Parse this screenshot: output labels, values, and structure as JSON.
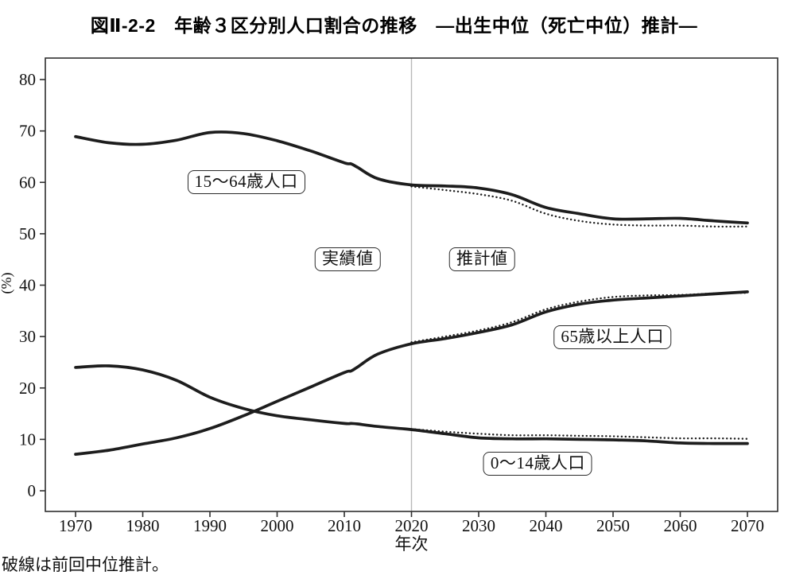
{
  "title": "図Ⅱ-2-2　年齢３区分別人口割合の推移　―出生中位（死亡中位）推計―",
  "footnote": "破線は前回中位推計。",
  "colors": {
    "line": "#1d1d1d",
    "divider": "#b9b9b9",
    "axis": "#2f2f2f",
    "text": "#111111",
    "background": "#ffffff"
  },
  "chart_data": {
    "type": "line",
    "title": "図Ⅱ-2-2　年齢３区分別人口割合の推移　―出生中位（死亡中位）推計―",
    "xlabel": "年次",
    "ylabel": "(%)",
    "xlim": [
      1965.5,
      2074.5
    ],
    "ylim": [
      -4.02,
      84.18
    ],
    "x_ticks": [
      1970,
      1980,
      1990,
      2000,
      2010,
      2020,
      2030,
      2040,
      2050,
      2060,
      2070
    ],
    "y_ticks": [
      0,
      10,
      20,
      30,
      40,
      50,
      60,
      70,
      80
    ],
    "grid": false,
    "legend": "none",
    "divider_x": 2020,
    "series": [
      {
        "id": "working",
        "name": "15〜64歳人口",
        "style": "solid",
        "x": [
          1970,
          1975,
          1980,
          1985,
          1990,
          1995,
          2000,
          2005,
          2010,
          2011,
          2012,
          2015,
          2020,
          2025,
          2030,
          2035,
          2040,
          2045,
          2050,
          2055,
          2060,
          2065,
          2070
        ],
        "values": [
          68.9,
          67.7,
          67.4,
          68.2,
          69.7,
          69.5,
          68.1,
          66.1,
          63.8,
          63.6,
          62.9,
          60.7,
          59.5,
          59.3,
          58.9,
          57.6,
          55.1,
          53.9,
          52.9,
          52.9,
          53.0,
          52.5,
          52.1
        ]
      },
      {
        "id": "elderly",
        "name": "65歳以上人口",
        "style": "solid",
        "x": [
          1970,
          1975,
          1980,
          1985,
          1990,
          1995,
          2000,
          2005,
          2010,
          2011,
          2012,
          2015,
          2020,
          2025,
          2030,
          2035,
          2040,
          2045,
          2050,
          2055,
          2060,
          2065,
          2070
        ],
        "values": [
          7.1,
          7.9,
          9.1,
          10.3,
          12.1,
          14.6,
          17.4,
          20.2,
          23.0,
          23.3,
          24.1,
          26.6,
          28.6,
          29.6,
          30.8,
          32.3,
          34.8,
          36.3,
          37.1,
          37.5,
          37.9,
          38.3,
          38.7
        ]
      },
      {
        "id": "children",
        "name": "0〜14歳人口",
        "style": "solid",
        "x": [
          1970,
          1975,
          1980,
          1985,
          1990,
          1995,
          2000,
          2005,
          2010,
          2011,
          2012,
          2015,
          2020,
          2025,
          2030,
          2035,
          2040,
          2045,
          2050,
          2055,
          2060,
          2065,
          2070
        ],
        "values": [
          24.0,
          24.3,
          23.5,
          21.5,
          18.2,
          16.0,
          14.6,
          13.8,
          13.1,
          13.1,
          13.0,
          12.5,
          11.9,
          11.1,
          10.3,
          10.1,
          10.1,
          10.0,
          9.9,
          9.7,
          9.3,
          9.2,
          9.2
        ]
      },
      {
        "id": "working-prev",
        "name": "15〜64歳人口（前回中位推計）",
        "style": "dotted",
        "x": [
          2020,
          2025,
          2030,
          2035,
          2040,
          2045,
          2050,
          2055,
          2060,
          2065,
          2070
        ],
        "values": [
          59.2,
          58.5,
          57.7,
          56.4,
          53.9,
          52.5,
          51.8,
          51.6,
          51.6,
          51.4,
          51.4
        ]
      },
      {
        "id": "elderly-prev",
        "name": "65歳以上人口（前回中位推計）",
        "style": "dotted",
        "x": [
          2020,
          2025,
          2030,
          2035,
          2040,
          2045,
          2050,
          2055,
          2060,
          2065,
          2070
        ],
        "values": [
          28.9,
          30.0,
          31.2,
          32.8,
          35.3,
          36.8,
          37.7,
          38.0,
          38.1,
          38.4,
          38.5
        ]
      },
      {
        "id": "children-prev",
        "name": "0〜14歳人口（前回中位推計）",
        "style": "dotted",
        "x": [
          2020,
          2025,
          2030,
          2035,
          2040,
          2045,
          2050,
          2055,
          2060,
          2065,
          2070
        ],
        "values": [
          12.0,
          11.5,
          11.1,
          10.8,
          10.8,
          10.7,
          10.6,
          10.4,
          10.2,
          10.2,
          10.1
        ]
      }
    ],
    "annotations": [
      {
        "id": "label-working",
        "text": "15〜64歳人口",
        "x": 1995.4,
        "y": 60.0
      },
      {
        "id": "label-actual",
        "text": "実績値",
        "x": 2010.5,
        "y": 45.0
      },
      {
        "id": "label-projected",
        "text": "推計値",
        "x": 2030.5,
        "y": 45.0
      },
      {
        "id": "label-elderly",
        "text": "65歳以上人口",
        "x": 2049.9,
        "y": 29.9
      },
      {
        "id": "label-children",
        "text": "0〜14歳人口",
        "x": 2038.8,
        "y": 5.3
      }
    ]
  }
}
